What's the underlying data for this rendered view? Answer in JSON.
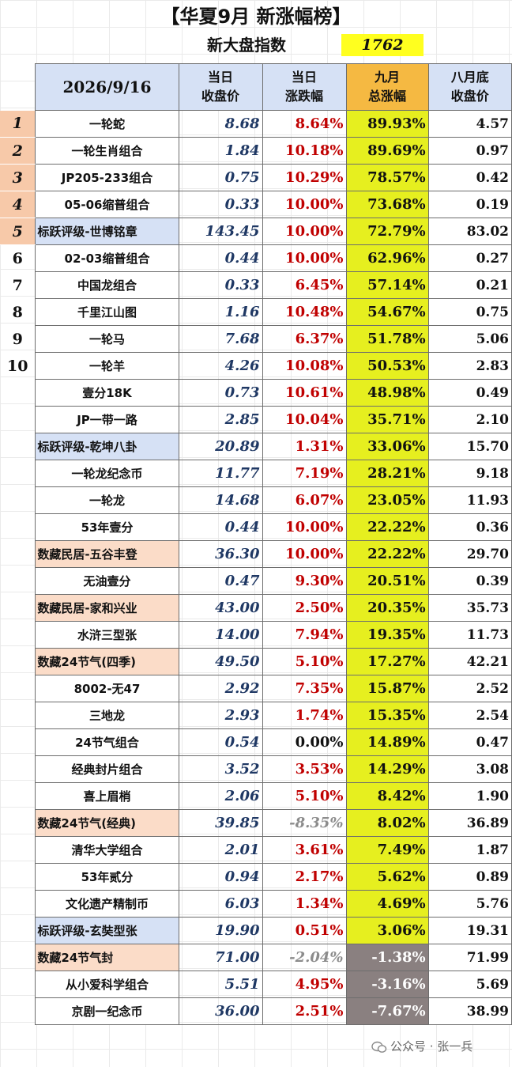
{
  "title": "【华夏9月 新涨幅榜】",
  "subtitle": {
    "label": "新大盘指数",
    "value": "1762"
  },
  "header": {
    "date": "2026/9/16",
    "columns": [
      [
        "当日",
        "收盘价"
      ],
      [
        "当日",
        "涨跌幅"
      ],
      [
        "九月",
        "总涨幅"
      ],
      [
        "八月底",
        "收盘价"
      ]
    ]
  },
  "rows": [
    {
      "rank": "1",
      "name": "一轮蛇",
      "close": "8.68",
      "change": "8.64%",
      "total": "89.93%",
      "aug": "4.57",
      "style": "plain"
    },
    {
      "rank": "2",
      "name": "一轮生肖组合",
      "close": "1.84",
      "change": "10.18%",
      "total": "89.69%",
      "aug": "0.97",
      "style": "plain"
    },
    {
      "rank": "3",
      "name": "JP205-233组合",
      "close": "0.75",
      "change": "10.29%",
      "total": "78.57%",
      "aug": "0.42",
      "style": "plain"
    },
    {
      "rank": "4",
      "name": "05-06缩普组合",
      "close": "0.33",
      "change": "10.00%",
      "total": "73.68%",
      "aug": "0.19",
      "style": "plain"
    },
    {
      "rank": "5",
      "name": "标跃评级-世博铭章",
      "close": "143.45",
      "change": "10.00%",
      "total": "72.79%",
      "aug": "83.02",
      "style": "blue"
    },
    {
      "rank": "6",
      "name": "02-03缩普组合",
      "close": "0.44",
      "change": "10.00%",
      "total": "62.96%",
      "aug": "0.27",
      "style": "plain"
    },
    {
      "rank": "7",
      "name": "中国龙组合",
      "close": "0.33",
      "change": "6.45%",
      "total": "57.14%",
      "aug": "0.21",
      "style": "plain"
    },
    {
      "rank": "8",
      "name": "千里江山图",
      "close": "1.16",
      "change": "10.48%",
      "total": "54.67%",
      "aug": "0.75",
      "style": "plain"
    },
    {
      "rank": "9",
      "name": "一轮马",
      "close": "7.68",
      "change": "6.37%",
      "total": "51.78%",
      "aug": "5.06",
      "style": "plain"
    },
    {
      "rank": "10",
      "name": "一轮羊",
      "close": "4.26",
      "change": "10.08%",
      "total": "50.53%",
      "aug": "2.83",
      "style": "plain"
    },
    {
      "rank": "",
      "name": "壹分18K",
      "close": "0.73",
      "change": "10.61%",
      "total": "48.98%",
      "aug": "0.49",
      "style": "plain"
    },
    {
      "rank": "",
      "name": "JP一带一路",
      "close": "2.85",
      "change": "10.04%",
      "total": "35.71%",
      "aug": "2.10",
      "style": "plain"
    },
    {
      "rank": "",
      "name": "标跃评级-乾坤八卦",
      "close": "20.89",
      "change": "1.31%",
      "total": "33.06%",
      "aug": "15.70",
      "style": "blue"
    },
    {
      "rank": "",
      "name": "一轮龙纪念币",
      "close": "11.77",
      "change": "7.19%",
      "total": "28.21%",
      "aug": "9.18",
      "style": "plain"
    },
    {
      "rank": "",
      "name": "一轮龙",
      "close": "14.68",
      "change": "6.07%",
      "total": "23.05%",
      "aug": "11.93",
      "style": "plain"
    },
    {
      "rank": "",
      "name": "53年壹分",
      "close": "0.44",
      "change": "10.00%",
      "total": "22.22%",
      "aug": "0.36",
      "style": "plain"
    },
    {
      "rank": "",
      "name": "数藏民居-五谷丰登",
      "close": "36.30",
      "change": "10.00%",
      "total": "22.22%",
      "aug": "29.70",
      "style": "peach"
    },
    {
      "rank": "",
      "name": "无油壹分",
      "close": "0.47",
      "change": "9.30%",
      "total": "20.51%",
      "aug": "0.39",
      "style": "plain"
    },
    {
      "rank": "",
      "name": "数藏民居-家和兴业",
      "close": "43.00",
      "change": "2.50%",
      "total": "20.35%",
      "aug": "35.73",
      "style": "peach"
    },
    {
      "rank": "",
      "name": "水浒三型张",
      "close": "14.00",
      "change": "7.94%",
      "total": "19.35%",
      "aug": "11.73",
      "style": "plain"
    },
    {
      "rank": "",
      "name": "数藏24节气(四季)",
      "close": "49.50",
      "change": "5.10%",
      "total": "17.27%",
      "aug": "42.21",
      "style": "peach"
    },
    {
      "rank": "",
      "name": "8002-无47",
      "close": "2.92",
      "change": "7.35%",
      "total": "15.87%",
      "aug": "2.52",
      "style": "plain"
    },
    {
      "rank": "",
      "name": "三地龙",
      "close": "2.93",
      "change": "1.74%",
      "total": "15.35%",
      "aug": "2.54",
      "style": "plain"
    },
    {
      "rank": "",
      "name": "24节气组合",
      "close": "0.54",
      "change": "0.00%",
      "total": "14.89%",
      "aug": "0.47",
      "style": "plain"
    },
    {
      "rank": "",
      "name": "经典封片组合",
      "close": "3.52",
      "change": "3.53%",
      "total": "14.29%",
      "aug": "3.08",
      "style": "plain"
    },
    {
      "rank": "",
      "name": "喜上眉梢",
      "close": "2.06",
      "change": "5.10%",
      "total": "8.42%",
      "aug": "1.90",
      "style": "plain"
    },
    {
      "rank": "",
      "name": "数藏24节气(经典)",
      "close": "39.85",
      "change": "-8.35%",
      "total": "8.02%",
      "aug": "36.89",
      "style": "peach"
    },
    {
      "rank": "",
      "name": "清华大学组合",
      "close": "2.01",
      "change": "3.61%",
      "total": "7.49%",
      "aug": "1.87",
      "style": "plain"
    },
    {
      "rank": "",
      "name": "53年贰分",
      "close": "0.94",
      "change": "2.17%",
      "total": "5.62%",
      "aug": "0.89",
      "style": "plain"
    },
    {
      "rank": "",
      "name": "文化遗产精制币",
      "close": "6.03",
      "change": "1.34%",
      "total": "4.69%",
      "aug": "5.76",
      "style": "plain"
    },
    {
      "rank": "",
      "name": "标跃评级-玄奘型张",
      "close": "19.90",
      "change": "0.51%",
      "total": "3.06%",
      "aug": "19.31",
      "style": "blue"
    },
    {
      "rank": "",
      "name": "数藏24节气封",
      "close": "71.00",
      "change": "-2.04%",
      "total": "-1.38%",
      "aug": "71.99",
      "style": "peach"
    },
    {
      "rank": "",
      "name": "从小爱科学组合",
      "close": "5.51",
      "change": "4.95%",
      "total": "-3.16%",
      "aug": "5.69",
      "style": "plain"
    },
    {
      "rank": "",
      "name": "京剧一纪念币",
      "close": "36.00",
      "change": "2.51%",
      "total": "-7.67%",
      "aug": "38.99",
      "style": "plain"
    }
  ],
  "watermark": {
    "icon": "wechat-icon",
    "text": "公众号 · 张一兵"
  },
  "colors": {
    "highlight_yellow": "#ffff1f",
    "total_column": "#e6ef1f",
    "negative_total": "#8a8080",
    "header_blue": "#d6e1f5",
    "header_gold": "#f5b942",
    "rank_peach": "#f7c9a9",
    "change_red": "#c00000",
    "price_navy": "#1f3864"
  }
}
